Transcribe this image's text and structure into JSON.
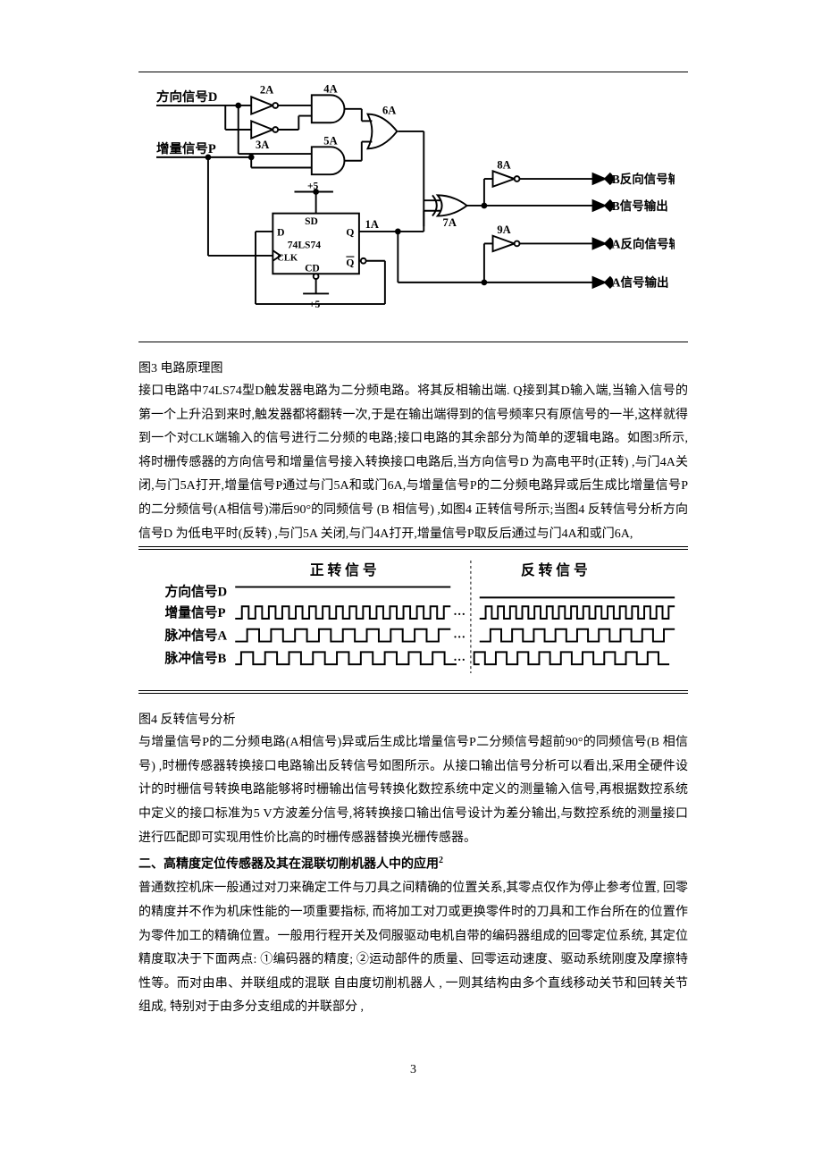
{
  "figure3": {
    "caption": "图3  电路原理图",
    "labels": {
      "dir_signal": "方向信号D",
      "inc_signal": "增量信号P",
      "g2a": "2A",
      "g3a": "3A",
      "g4a": "4A",
      "g5a": "5A",
      "g6a": "6A",
      "g7a": "7A",
      "g8a": "8A",
      "g9a": "9A",
      "g1a": "1A",
      "chip": "74LS74",
      "sd": "SD",
      "cd": "CD",
      "d": "D",
      "clk": "CLK",
      "q": "Q",
      "qbar": "Q",
      "p5a": "+5",
      "p5b": "+5",
      "out_b_inv": "B反向信号输出",
      "out_b": "B信号输出",
      "out_a_inv": "A反向信号输出",
      "out_a": "A信号输出"
    },
    "colors": {
      "stroke": "#000000",
      "fill": "#ffffff",
      "text": "#000000"
    }
  },
  "para1": "接口电路中74LS74型D触发器电路为二分频电路。将其反相输出端. Q接到其D输入端,当输入信号的第一个上升沿到来时,触发器都将翻转一次,于是在输出端得到的信号频率只有原信号的一半,这样就得到一个对CLK端输入的信号进行二分频的电路;接口电路的其余部分为简单的逻辑电路。如图3所示,将时栅传感器的方向信号和增量信号接入转换接口电路后,当方向信号D 为高电平时(正转) ,与门4A关闭,与门5A打开,增量信号P通过与门5A和或门6A,与增量信号P的二分频电路异或后生成比增量信号P的二分频信号(A相信号)滞后90°的同频信号 (B 相信号) ,如图4 正转信号所示;当图4  反转信号分析方向信号D 为低电平时(反转) ,与门5A 关闭,与门4A打开,增量信号P取反后通过与门4A和或门6A,",
  "figure4": {
    "caption": "图4  反转信号分析",
    "labels": {
      "fwd_title": "正 转 信 号",
      "rev_title": "反 转 信 号",
      "row_d": "方向信号D",
      "row_p": "增量信号P",
      "row_a": "脉冲信号A",
      "row_b": "脉冲信号B",
      "dots": "…"
    },
    "waveforms": {
      "p_cycles": 16,
      "a_cycles": 9,
      "b_cycles": 9,
      "height": 14,
      "stroke": "#000000",
      "stroke_width": 2
    }
  },
  "para2": "与增量信号P的二分频电路(A相信号)异或后生成比增量信号P二分频信号超前90°的同频信号(B 相信号) ,时栅传感器转换接口电路输出反转信号如图所示。从接口输出信号分析可以看出,采用全硬件设计的时栅信号转换电路能够将时栅输出信号转换化数控系统中定义的测量输入信号,再根据数控系统中定义的接口标准为5 V方波差分信号,将转换接口输出信号设计为差分输出,与数控系统的测量接口进行匹配即可实现用性价比高的时栅传感器替换光栅传感器。",
  "heading2": "二、高精度定位传感器及其在混联切削机器人中的应用",
  "heading2_ref": "2",
  "para3": "普通数控机床一般通过对刀来确定工件与刀具之间精确的位置关系,其零点仅作为停止参考位置, 回零的精度并不作为机床性能的一项重要指标, 而将加工对刀或更换零件时的刀具和工作台所在的位置作为零件加工的精确位置。一般用行程开关及伺服驱动电机自带的编码器组成的回零定位系统, 其定位精度取决于下面两点: ①编码器的精度; ②运动部件的质量、回零运动速度、驱动系统刚度及摩擦特性等。而对由串、并联组成的混联 自由度切削机器人 , 一则其结构由多个直线移动关节和回转关节组成, 特别对于由多分支组成的并联部分 ,",
  "page_number": "3"
}
